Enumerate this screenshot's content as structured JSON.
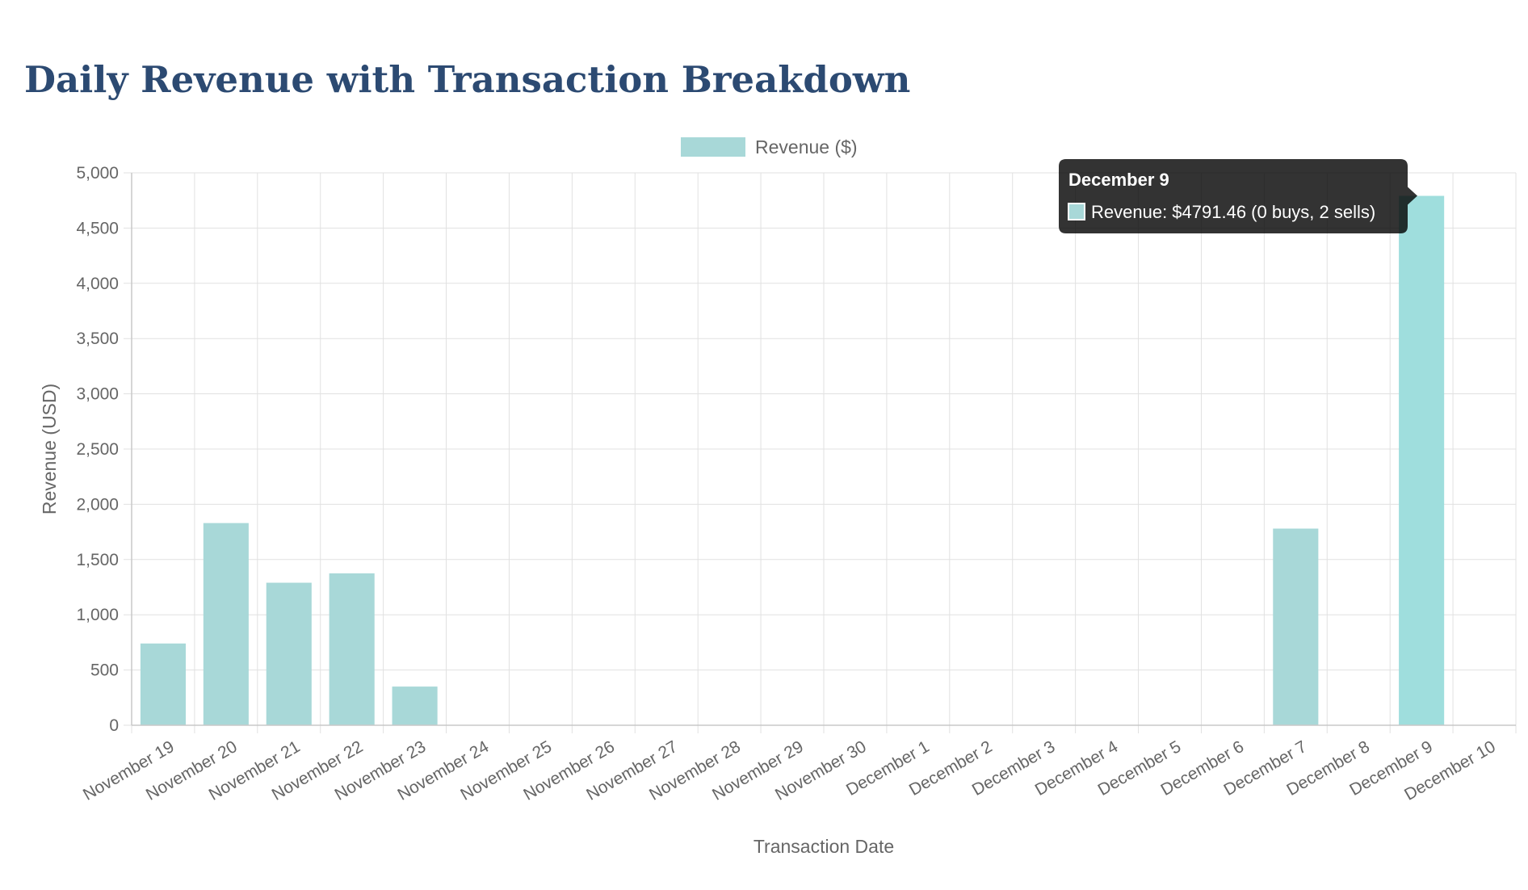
{
  "title": "Daily Revenue with Transaction Breakdown",
  "chart_data": {
    "type": "bar",
    "title": "Daily Revenue with Transaction Breakdown",
    "xlabel": "Transaction Date",
    "ylabel": "Revenue (USD)",
    "ylim": [
      0,
      5000
    ],
    "yticks": [
      "0",
      "500",
      "1,000",
      "1,500",
      "2,000",
      "2,500",
      "3,000",
      "3,500",
      "4,000",
      "4,500",
      "5,000"
    ],
    "grid": true,
    "legend_position": "top-center",
    "categories": [
      "November 19",
      "November 20",
      "November 21",
      "November 22",
      "November 23",
      "November 24",
      "November 25",
      "November 26",
      "November 27",
      "November 28",
      "November 29",
      "November 30",
      "December 1",
      "December 2",
      "December 3",
      "December 4",
      "December 5",
      "December 6",
      "December 7",
      "December 8",
      "December 9",
      "December 10"
    ],
    "series": [
      {
        "name": "Revenue ($)",
        "color": "#a8d8d8",
        "highlight_color": "#9fdedd",
        "values": [
          740,
          1830,
          1290,
          1375,
          350,
          0,
          0,
          0,
          0,
          0,
          0,
          0,
          0,
          0,
          0,
          0,
          0,
          0,
          1780,
          0,
          4791.46,
          0
        ]
      }
    ],
    "tooltip": {
      "category_index": 20,
      "title": "December 9",
      "body": "Revenue: $4791.46 (0 buys, 2 sells)"
    }
  }
}
